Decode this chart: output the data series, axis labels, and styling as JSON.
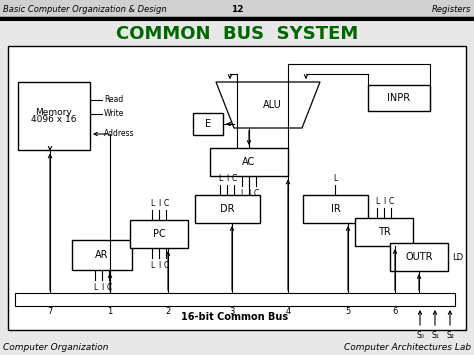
{
  "title": "COMMON  BUS  SYSTEM",
  "header_left": "Basic Computer Organization & Design",
  "header_center": "12",
  "header_right": "Registers",
  "footer_left": "Computer Organization",
  "footer_right": "Computer Architectures Lab",
  "bus_label": "16-bit Common Bus",
  "s_labels": [
    "S₀",
    "S₁",
    "S₂"
  ],
  "bg_color": "#e8e8e8",
  "title_color": "#006600"
}
